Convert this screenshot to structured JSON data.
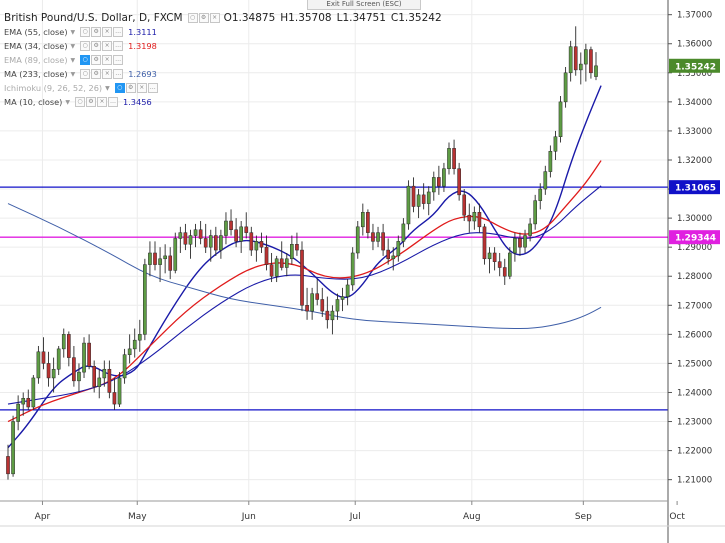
{
  "toolbar": {
    "exit_fullscreen": "Exit Full Screen (ESC)"
  },
  "header": {
    "title": "British Pound/U.S. Dollar, D, FXCM",
    "ohlc": [
      {
        "k": "O",
        "v": "1.34875"
      },
      {
        "k": "H",
        "v": "1.35708"
      },
      {
        "k": "L",
        "v": "1.34751"
      },
      {
        "k": "C",
        "v": "1.35242"
      }
    ]
  },
  "indicators": [
    {
      "label": "EMA (55, close)",
      "value": "1.3111",
      "color": "#1a1aa8",
      "dim": false
    },
    {
      "label": "EMA (34, close)",
      "value": "1.3198",
      "color": "#e01b1b",
      "dim": false
    },
    {
      "label": "EMA (89, close)",
      "value": "",
      "color": "#aaaaaa",
      "dim": true
    },
    {
      "label": "MA (233, close)",
      "value": "1.2693",
      "color": "#3f5fa8",
      "dim": false
    },
    {
      "label": "Ichimoku (9, 26, 52, 26)",
      "value": "",
      "color": "#aaaaaa",
      "dim": true
    },
    {
      "label": "MA (10, close)",
      "value": "1.3456",
      "color": "#1a1aa8",
      "dim": false
    }
  ],
  "chart_data": {
    "type": "candlestick",
    "symbol": "GBP/USD",
    "interval": "D",
    "x_axis_ticks": [
      "Apr",
      "May",
      "Jun",
      "Jul",
      "Aug",
      "Sep",
      "Oct"
    ],
    "y_axis_ticks": [
      "1.21000",
      "1.22000",
      "1.23000",
      "1.24000",
      "1.25000",
      "1.26000",
      "1.27000",
      "1.28000",
      "1.29000",
      "1.30000",
      "1.31000",
      "1.32000",
      "1.33000",
      "1.34000",
      "1.35000",
      "1.36000",
      "1.37000"
    ],
    "ylim": [
      1.203,
      1.3723
    ],
    "last_price_label": "1.35242",
    "horizontal_lines": [
      {
        "price": 1.31065,
        "label": "1.31065",
        "color": "#1010c8"
      },
      {
        "price": 1.29344,
        "label": "1.29344",
        "color": "#e020e0"
      },
      {
        "price": 1.234,
        "label": "",
        "color": "#1010c8"
      }
    ],
    "colors": {
      "up": "#5e9c44",
      "down": "#b83232",
      "last_label": "#4b8a2b"
    },
    "candles": [
      [
        1.218,
        1.222,
        1.21,
        1.212
      ],
      [
        1.212,
        1.232,
        1.211,
        1.23
      ],
      [
        1.23,
        1.239,
        1.227,
        1.236
      ],
      [
        1.236,
        1.24,
        1.232,
        1.238
      ],
      [
        1.238,
        1.241,
        1.234,
        1.235
      ],
      [
        1.235,
        1.246,
        1.234,
        1.245
      ],
      [
        1.245,
        1.256,
        1.243,
        1.254
      ],
      [
        1.254,
        1.259,
        1.248,
        1.25
      ],
      [
        1.25,
        1.254,
        1.242,
        1.245
      ],
      [
        1.245,
        1.252,
        1.24,
        1.248
      ],
      [
        1.248,
        1.256,
        1.246,
        1.255
      ],
      [
        1.255,
        1.262,
        1.252,
        1.26
      ],
      [
        1.26,
        1.261,
        1.249,
        1.252
      ],
      [
        1.252,
        1.256,
        1.242,
        1.244
      ],
      [
        1.244,
        1.25,
        1.24,
        1.247
      ],
      [
        1.247,
        1.259,
        1.245,
        1.257
      ],
      [
        1.257,
        1.26,
        1.248,
        1.249
      ],
      [
        1.249,
        1.251,
        1.24,
        1.242
      ],
      [
        1.242,
        1.248,
        1.238,
        1.245
      ],
      [
        1.245,
        1.251,
        1.242,
        1.248
      ],
      [
        1.248,
        1.251,
        1.238,
        1.24
      ],
      [
        1.24,
        1.245,
        1.234,
        1.236
      ],
      [
        1.236,
        1.247,
        1.235,
        1.245
      ],
      [
        1.245,
        1.255,
        1.243,
        1.253
      ],
      [
        1.253,
        1.26,
        1.25,
        1.255
      ],
      [
        1.255,
        1.262,
        1.252,
        1.258
      ],
      [
        1.258,
        1.265,
        1.254,
        1.26
      ],
      [
        1.26,
        1.286,
        1.258,
        1.284
      ],
      [
        1.284,
        1.292,
        1.28,
        1.288
      ],
      [
        1.288,
        1.292,
        1.282,
        1.284
      ],
      [
        1.284,
        1.29,
        1.278,
        1.286
      ],
      [
        1.286,
        1.291,
        1.281,
        1.287
      ],
      [
        1.287,
        1.29,
        1.279,
        1.282
      ],
      [
        1.282,
        1.295,
        1.281,
        1.293
      ],
      [
        1.293,
        1.297,
        1.288,
        1.295
      ],
      [
        1.295,
        1.298,
        1.289,
        1.291
      ],
      [
        1.291,
        1.296,
        1.286,
        1.294
      ],
      [
        1.294,
        1.298,
        1.29,
        1.296
      ],
      [
        1.296,
        1.299,
        1.291,
        1.293
      ],
      [
        1.293,
        1.298,
        1.288,
        1.29
      ],
      [
        1.29,
        1.296,
        1.285,
        1.294
      ],
      [
        1.294,
        1.297,
        1.287,
        1.289
      ],
      [
        1.289,
        1.296,
        1.286,
        1.294
      ],
      [
        1.294,
        1.302,
        1.291,
        1.299
      ],
      [
        1.299,
        1.303,
        1.294,
        1.296
      ],
      [
        1.296,
        1.3,
        1.29,
        1.292
      ],
      [
        1.292,
        1.299,
        1.288,
        1.297
      ],
      [
        1.297,
        1.302,
        1.293,
        1.295
      ],
      [
        1.295,
        1.297,
        1.287,
        1.289
      ],
      [
        1.289,
        1.294,
        1.285,
        1.292
      ],
      [
        1.292,
        1.295,
        1.288,
        1.29
      ],
      [
        1.29,
        1.294,
        1.282,
        1.284
      ],
      [
        1.284,
        1.288,
        1.278,
        1.28
      ],
      [
        1.28,
        1.287,
        1.278,
        1.286
      ],
      [
        1.286,
        1.292,
        1.282,
        1.283
      ],
      [
        1.283,
        1.288,
        1.28,
        1.286
      ],
      [
        1.286,
        1.294,
        1.284,
        1.291
      ],
      [
        1.291,
        1.295,
        1.287,
        1.289
      ],
      [
        1.289,
        1.292,
        1.268,
        1.27
      ],
      [
        1.27,
        1.276,
        1.265,
        1.268
      ],
      [
        1.268,
        1.276,
        1.265,
        1.274
      ],
      [
        1.274,
        1.279,
        1.27,
        1.272
      ],
      [
        1.272,
        1.276,
        1.266,
        1.268
      ],
      [
        1.268,
        1.273,
        1.262,
        1.265
      ],
      [
        1.265,
        1.27,
        1.26,
        1.268
      ],
      [
        1.268,
        1.274,
        1.265,
        1.272
      ],
      [
        1.272,
        1.276,
        1.268,
        1.273
      ],
      [
        1.273,
        1.279,
        1.27,
        1.277
      ],
      [
        1.277,
        1.29,
        1.275,
        1.288
      ],
      [
        1.288,
        1.299,
        1.286,
        1.297
      ],
      [
        1.297,
        1.305,
        1.294,
        1.302
      ],
      [
        1.302,
        1.303,
        1.293,
        1.295
      ],
      [
        1.295,
        1.298,
        1.289,
        1.292
      ],
      [
        1.292,
        1.297,
        1.29,
        1.295
      ],
      [
        1.295,
        1.298,
        1.287,
        1.289
      ],
      [
        1.289,
        1.293,
        1.284,
        1.286
      ],
      [
        1.286,
        1.29,
        1.282,
        1.287
      ],
      [
        1.287,
        1.294,
        1.285,
        1.292
      ],
      [
        1.292,
        1.3,
        1.29,
        1.298
      ],
      [
        1.298,
        1.313,
        1.296,
        1.311
      ],
      [
        1.311,
        1.314,
        1.302,
        1.304
      ],
      [
        1.304,
        1.31,
        1.3,
        1.308
      ],
      [
        1.308,
        1.312,
        1.303,
        1.305
      ],
      [
        1.305,
        1.311,
        1.301,
        1.309
      ],
      [
        1.309,
        1.316,
        1.306,
        1.314
      ],
      [
        1.314,
        1.318,
        1.308,
        1.311
      ],
      [
        1.311,
        1.319,
        1.309,
        1.317
      ],
      [
        1.317,
        1.326,
        1.315,
        1.324
      ],
      [
        1.324,
        1.327,
        1.315,
        1.317
      ],
      [
        1.317,
        1.319,
        1.306,
        1.308
      ],
      [
        1.308,
        1.31,
        1.299,
        1.301
      ],
      [
        1.301,
        1.305,
        1.295,
        1.299
      ],
      [
        1.299,
        1.304,
        1.296,
        1.302
      ],
      [
        1.302,
        1.305,
        1.295,
        1.297
      ],
      [
        1.297,
        1.298,
        1.284,
        1.286
      ],
      [
        1.286,
        1.29,
        1.281,
        1.288
      ],
      [
        1.288,
        1.29,
        1.282,
        1.285
      ],
      [
        1.285,
        1.288,
        1.28,
        1.283
      ],
      [
        1.283,
        1.286,
        1.277,
        1.28
      ],
      [
        1.28,
        1.29,
        1.279,
        1.288
      ],
      [
        1.288,
        1.295,
        1.285,
        1.293
      ],
      [
        1.293,
        1.295,
        1.287,
        1.29
      ],
      [
        1.29,
        1.296,
        1.288,
        1.294
      ],
      [
        1.294,
        1.3,
        1.292,
        1.298
      ],
      [
        1.298,
        1.308,
        1.296,
        1.306
      ],
      [
        1.306,
        1.312,
        1.303,
        1.31
      ],
      [
        1.31,
        1.318,
        1.308,
        1.316
      ],
      [
        1.316,
        1.325,
        1.314,
        1.323
      ],
      [
        1.323,
        1.33,
        1.32,
        1.328
      ],
      [
        1.328,
        1.342,
        1.326,
        1.34
      ],
      [
        1.34,
        1.352,
        1.338,
        1.35
      ],
      [
        1.35,
        1.361,
        1.347,
        1.359
      ],
      [
        1.359,
        1.366,
        1.349,
        1.351
      ],
      [
        1.351,
        1.357,
        1.346,
        1.353
      ],
      [
        1.353,
        1.36,
        1.347,
        1.358
      ],
      [
        1.358,
        1.359,
        1.348,
        1.35
      ],
      [
        1.3487,
        1.3571,
        1.3475,
        1.3524
      ]
    ],
    "moving_averages": [
      {
        "name": "MA (10, close)",
        "color": "#1a1aa8",
        "width": 1.4,
        "points": [
          [
            0,
            1.221
          ],
          [
            4,
            1.229
          ],
          [
            9,
            1.242
          ],
          [
            13,
            1.247
          ],
          [
            16,
            1.25
          ],
          [
            21,
            1.245
          ],
          [
            25,
            1.247
          ],
          [
            27,
            1.253
          ],
          [
            32,
            1.268
          ],
          [
            37,
            1.281
          ],
          [
            41,
            1.288
          ],
          [
            46,
            1.293
          ],
          [
            51,
            1.291
          ],
          [
            56,
            1.287
          ],
          [
            60,
            1.281
          ],
          [
            64,
            1.274
          ],
          [
            67,
            1.272
          ],
          [
            70,
            1.277
          ],
          [
            73,
            1.285
          ],
          [
            77,
            1.29
          ],
          [
            80,
            1.296
          ],
          [
            84,
            1.301
          ],
          [
            87,
            1.308
          ],
          [
            90,
            1.31
          ],
          [
            93,
            1.305
          ],
          [
            96,
            1.296
          ],
          [
            99,
            1.288
          ],
          [
            102,
            1.287
          ],
          [
            105,
            1.292
          ],
          [
            108,
            1.302
          ],
          [
            111,
            1.319
          ],
          [
            114,
            1.333
          ],
          [
            117,
            1.3456
          ]
        ]
      },
      {
        "name": "EMA (34, close)",
        "color": "#e01b1b",
        "width": 1.3,
        "points": [
          [
            0,
            1.23
          ],
          [
            7,
            1.236
          ],
          [
            14,
            1.24
          ],
          [
            21,
            1.244
          ],
          [
            28,
            1.256
          ],
          [
            35,
            1.268
          ],
          [
            42,
            1.277
          ],
          [
            49,
            1.284
          ],
          [
            56,
            1.285
          ],
          [
            63,
            1.279
          ],
          [
            70,
            1.28
          ],
          [
            77,
            1.287
          ],
          [
            84,
            1.296
          ],
          [
            88,
            1.3
          ],
          [
            93,
            1.301
          ],
          [
            98,
            1.296
          ],
          [
            102,
            1.294
          ],
          [
            106,
            1.296
          ],
          [
            110,
            1.304
          ],
          [
            114,
            1.312
          ],
          [
            117,
            1.3198
          ]
        ]
      },
      {
        "name": "EMA (55, close)",
        "color": "#1a1aa8",
        "width": 1.1,
        "points": [
          [
            0,
            1.236
          ],
          [
            7,
            1.238
          ],
          [
            14,
            1.24
          ],
          [
            21,
            1.244
          ],
          [
            28,
            1.252
          ],
          [
            35,
            1.262
          ],
          [
            42,
            1.271
          ],
          [
            49,
            1.278
          ],
          [
            56,
            1.281
          ],
          [
            63,
            1.279
          ],
          [
            70,
            1.279
          ],
          [
            77,
            1.284
          ],
          [
            84,
            1.291
          ],
          [
            90,
            1.295
          ],
          [
            95,
            1.295
          ],
          [
            100,
            1.293
          ],
          [
            104,
            1.293
          ],
          [
            108,
            1.297
          ],
          [
            112,
            1.304
          ],
          [
            117,
            1.3111
          ]
        ]
      },
      {
        "name": "MA (233, close)",
        "color": "#3f5fa8",
        "width": 1.0,
        "points": [
          [
            0,
            1.305
          ],
          [
            10,
            1.297
          ],
          [
            20,
            1.288
          ],
          [
            28,
            1.28
          ],
          [
            36,
            1.276
          ],
          [
            44,
            1.272
          ],
          [
            52,
            1.27
          ],
          [
            60,
            1.268
          ],
          [
            68,
            1.265
          ],
          [
            78,
            1.264
          ],
          [
            88,
            1.263
          ],
          [
            98,
            1.262
          ],
          [
            104,
            1.262
          ],
          [
            110,
            1.264
          ],
          [
            114,
            1.2665
          ],
          [
            117,
            1.2693
          ]
        ]
      }
    ]
  }
}
